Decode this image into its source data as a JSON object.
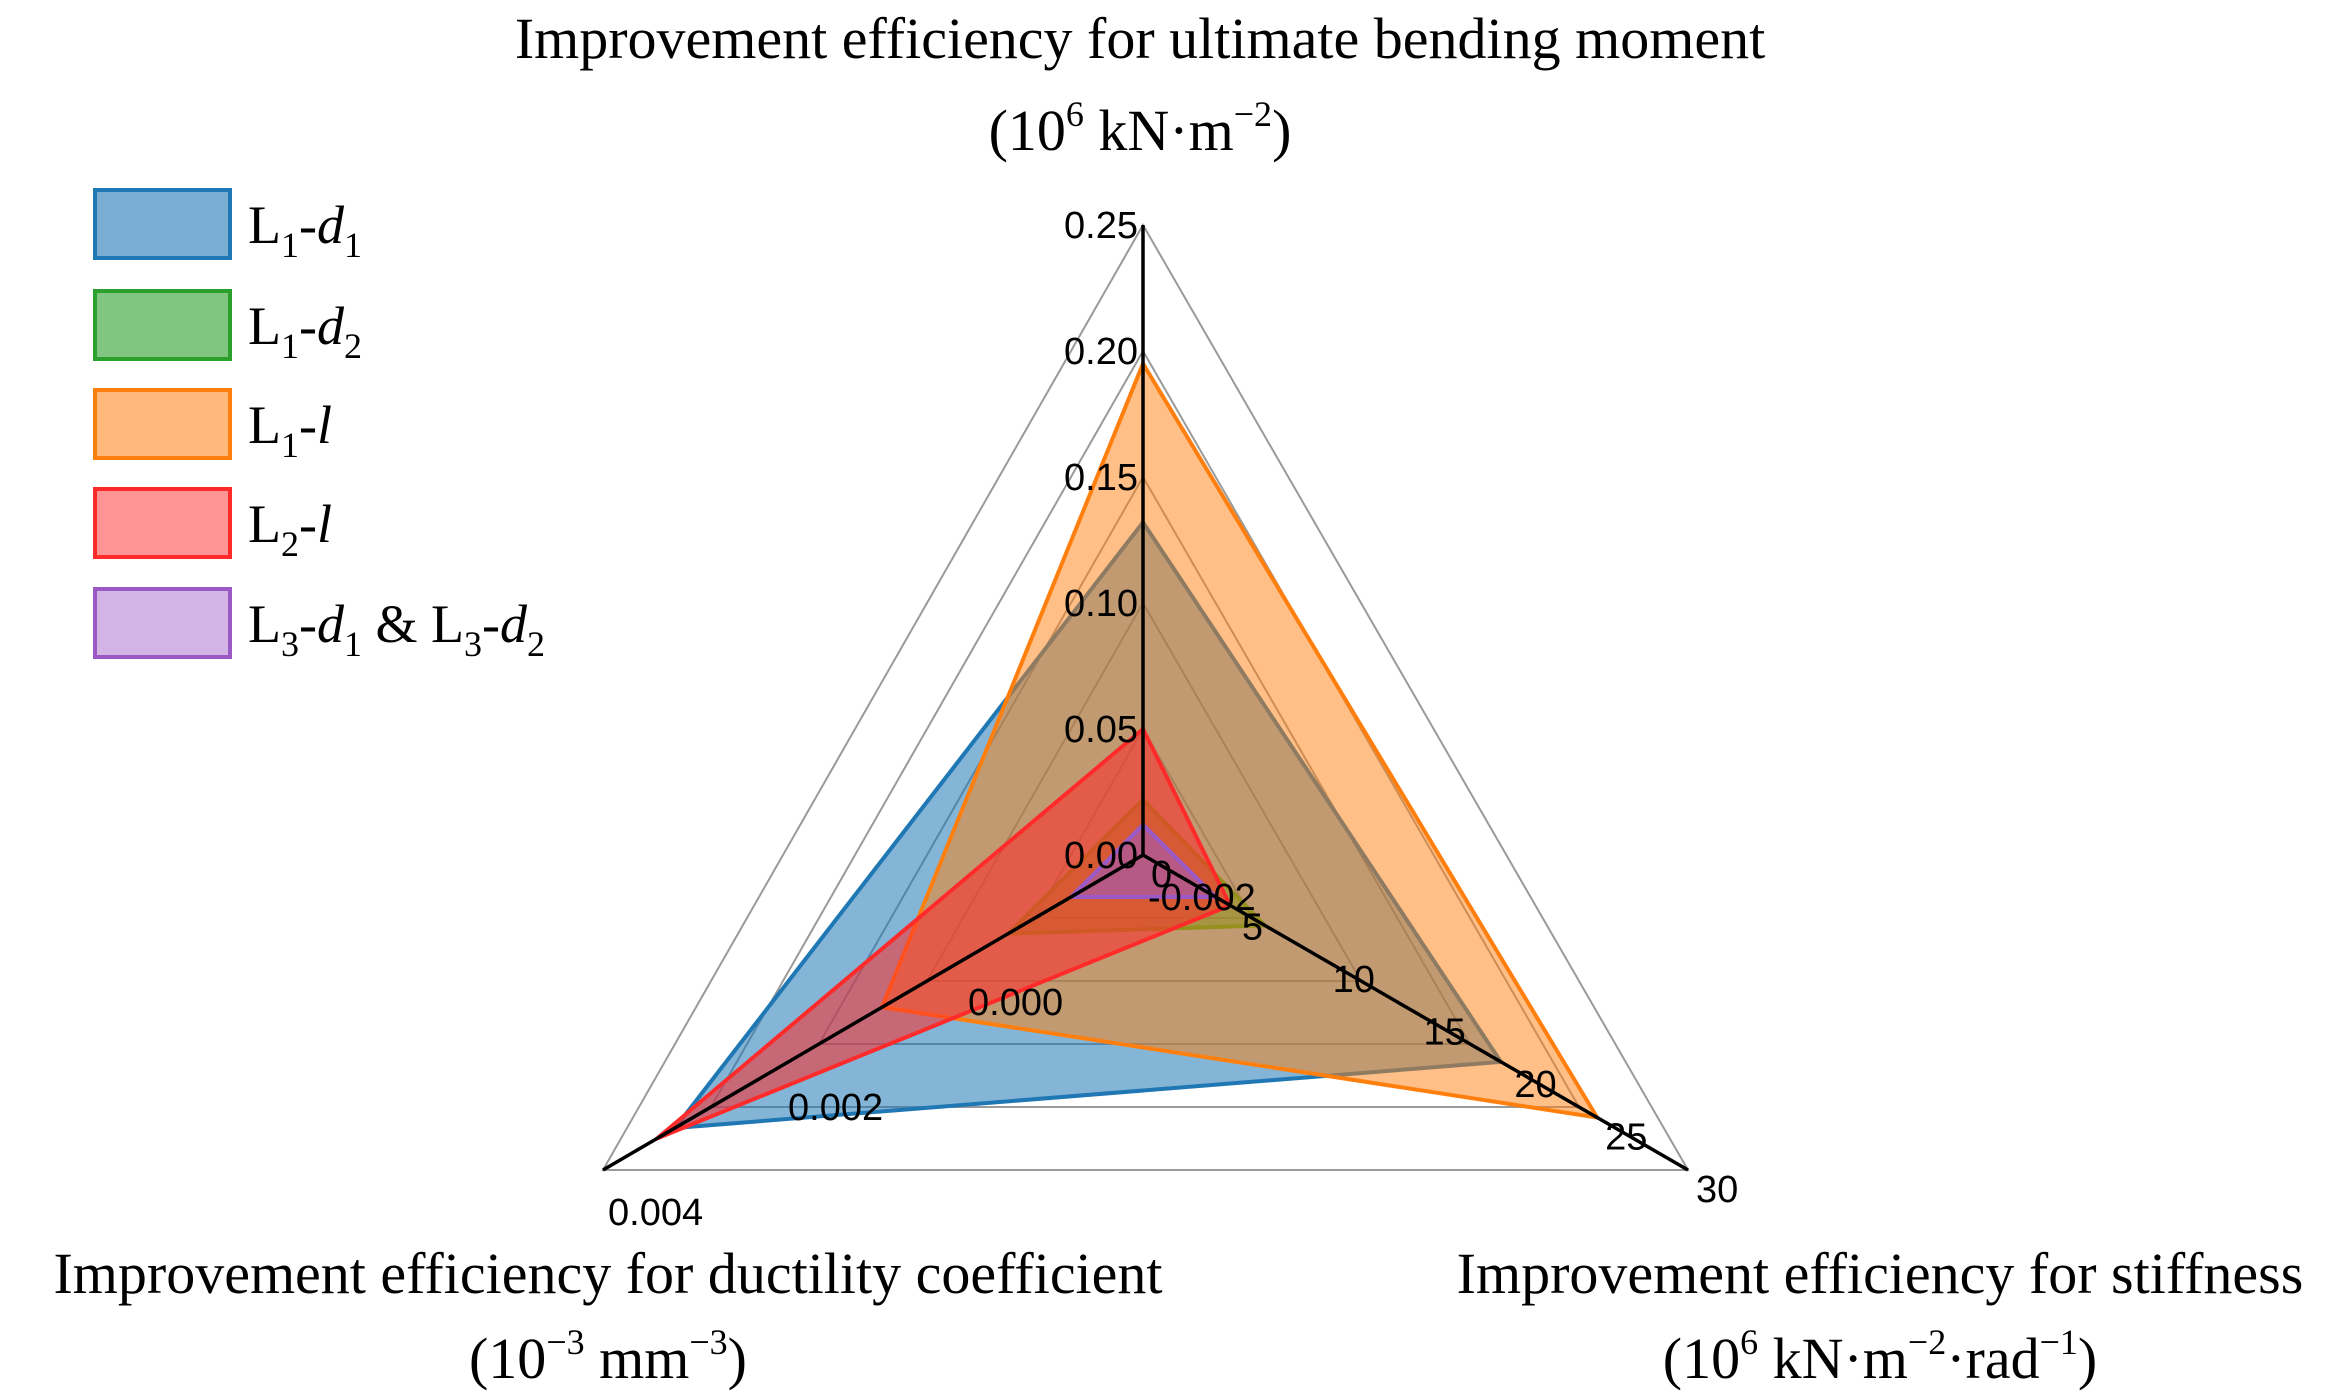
{
  "chart_data": {
    "type": "radar",
    "axes": [
      {
        "key": "moment",
        "title": "Improvement efficiency for ultimate bending moment",
        "unit_prefix": "(10",
        "unit_exp": "6",
        "unit_rest": " kN·m",
        "unit_exp2": "−2",
        "unit_close": ")",
        "ticks": [
          "0.00",
          "0.05",
          "0.10",
          "0.15",
          "0.20",
          "0.25"
        ],
        "range": [
          0.0,
          0.25
        ]
      },
      {
        "key": "stiffness",
        "title": "Improvement efficiency for stiffness",
        "unit_prefix": "(10",
        "unit_exp": "6",
        "unit_rest": " kN·m",
        "unit_exp2": "−2",
        "unit_mid": "·rad",
        "unit_exp3": "−1",
        "unit_close": ")",
        "ticks": [
          "0",
          "5",
          "10",
          "15",
          "20",
          "25",
          "30"
        ],
        "range": [
          0,
          30
        ]
      },
      {
        "key": "ductility",
        "title": "Improvement efficiency for ductility coefficient",
        "unit_prefix": "(10",
        "unit_exp": "−3",
        "unit_rest": " mm",
        "unit_exp2": "−3",
        "unit_close": ")",
        "ticks": [
          "-0.002",
          "0.000",
          "0.002",
          "0.004"
        ],
        "range": [
          -0.002,
          0.004
        ]
      }
    ],
    "series": [
      {
        "name": "L1-d1",
        "base": "L",
        "sub1": "1",
        "sep": "-",
        "it": "d",
        "sub2": "1",
        "fill": "#1f77b4",
        "stroke": "#1f77b4",
        "moment": 0.132,
        "stiffness": 19.7,
        "ductility": 0.0032
      },
      {
        "name": "L1-d2",
        "base": "L",
        "sub1": "1",
        "sep": "-",
        "it": "d",
        "sub2": "2",
        "fill": "#2ca02c",
        "stroke": "#2ca02c",
        "moment": 0.022,
        "stiffness": 6.7,
        "ductility": -0.0005
      },
      {
        "name": "L1-l",
        "base": "L",
        "sub1": "1",
        "sep": "-",
        "it": "l",
        "sub2": "",
        "fill": "#ff7f0e",
        "stroke": "#ff7f0e",
        "moment": 0.195,
        "stiffness": 25.0,
        "ductility": 0.0009
      },
      {
        "name": "L2-l",
        "base": "L",
        "sub1": "2",
        "sep": "-",
        "it": "l",
        "sub2": "",
        "fill": "#ff2a2a",
        "stroke": "#ff2a2a",
        "moment": 0.05,
        "stiffness": 4.8,
        "ductility": 0.0034
      },
      {
        "name": "L3-d1 & L3-d2",
        "base": "L",
        "sub1": "3",
        "sep": "-",
        "it": "d",
        "sub2": "1",
        "extra": " & ",
        "base2": "L",
        "sub3": "3",
        "sep2": "-",
        "it2": "d",
        "sub4": "2",
        "fill": "#9b59c6",
        "stroke": "#9b59c6",
        "moment": 0.012,
        "stiffness": 4.0,
        "ductility": -0.0012
      }
    ]
  }
}
